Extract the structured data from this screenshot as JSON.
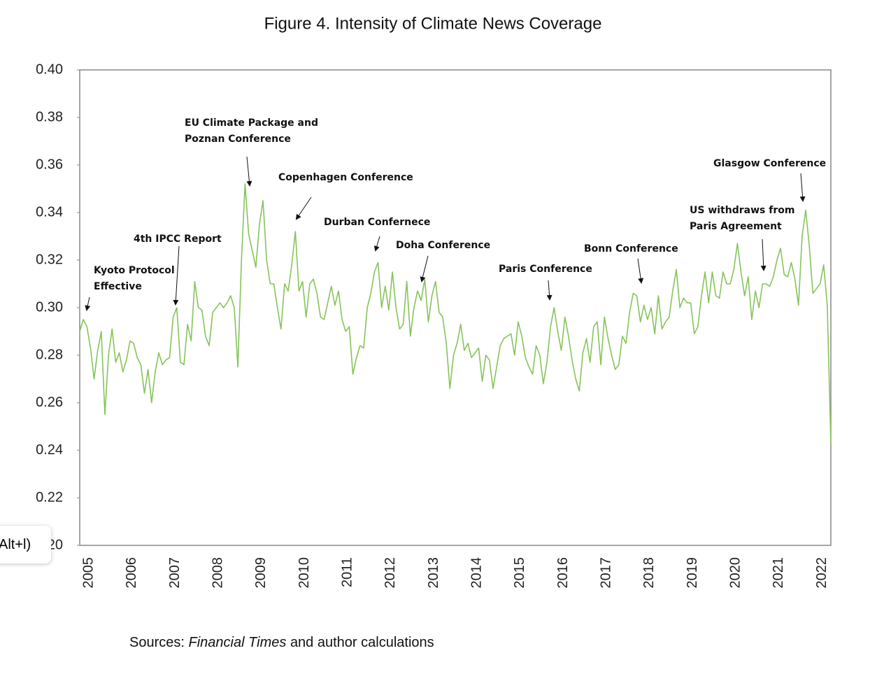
{
  "chart_data": {
    "type": "line",
    "title": "Figure 4. Intensity of Climate News Coverage",
    "categories": [
      null,
      null,
      "2005",
      null,
      null,
      null,
      null,
      null,
      null,
      null,
      null,
      null,
      null,
      null,
      "2006",
      null,
      null,
      null,
      null,
      null,
      null,
      null,
      null,
      null,
      null,
      null,
      "2007",
      null,
      null,
      null,
      null,
      null,
      null,
      null,
      null,
      null,
      null,
      null,
      "2008",
      null,
      null,
      null,
      null,
      null,
      null,
      null,
      null,
      null,
      null,
      null,
      "2009",
      null,
      null,
      null,
      null,
      null,
      null,
      null,
      null,
      null,
      null,
      null,
      "2010",
      null,
      null,
      null,
      null,
      null,
      null,
      null,
      null,
      null,
      null,
      null,
      "2011",
      null,
      null,
      null,
      null,
      null,
      null,
      null,
      null,
      null,
      null,
      null,
      "2012",
      null,
      null,
      null,
      null,
      null,
      null,
      null,
      null,
      null,
      null,
      null,
      "2013",
      null,
      null,
      null,
      null,
      null,
      null,
      null,
      null,
      null,
      null,
      null,
      "2014",
      null,
      null,
      null,
      null,
      null,
      null,
      null,
      null,
      null,
      null,
      null,
      "2015",
      null,
      null,
      null,
      null,
      null,
      null,
      null,
      null,
      null,
      null,
      null,
      "2016",
      null,
      null,
      null,
      null,
      null,
      null,
      null,
      null,
      null,
      null,
      null,
      "2017",
      null,
      null,
      null,
      null,
      null,
      null,
      null,
      null,
      null,
      null,
      null,
      "2018",
      null,
      null,
      null,
      null,
      null,
      null,
      null,
      null,
      null,
      null,
      null,
      "2019",
      null,
      null,
      null,
      null,
      null,
      null,
      null,
      null,
      null,
      null,
      null,
      "2020",
      null,
      null,
      null,
      null,
      null,
      null,
      null,
      null,
      null,
      null,
      null,
      "2021",
      null,
      null,
      null,
      null,
      null,
      null,
      null,
      null,
      null,
      null,
      null,
      "2022",
      null,
      null,
      null
    ],
    "values": [
      0.29,
      0.295,
      0.292,
      0.283,
      0.27,
      0.282,
      0.29,
      0.255,
      0.28,
      0.291,
      0.277,
      0.281,
      0.273,
      0.278,
      0.286,
      0.285,
      0.279,
      0.276,
      0.264,
      0.274,
      0.26,
      0.273,
      0.281,
      0.276,
      0.278,
      0.279,
      0.296,
      0.3,
      0.277,
      0.276,
      0.293,
      0.286,
      0.311,
      0.3,
      0.299,
      0.288,
      0.284,
      0.298,
      0.3,
      0.302,
      0.3,
      0.302,
      0.305,
      0.3,
      0.275,
      0.32,
      0.352,
      0.331,
      0.324,
      0.317,
      0.335,
      0.345,
      0.32,
      0.31,
      0.31,
      0.3,
      0.291,
      0.31,
      0.307,
      0.318,
      0.332,
      0.307,
      0.311,
      0.296,
      0.31,
      0.312,
      0.306,
      0.296,
      0.295,
      0.302,
      0.309,
      0.301,
      0.307,
      0.295,
      0.29,
      0.292,
      0.272,
      0.279,
      0.284,
      0.283,
      0.3,
      0.306,
      0.315,
      0.319,
      0.3,
      0.309,
      0.299,
      0.315,
      0.3,
      0.291,
      0.293,
      0.311,
      0.288,
      0.3,
      0.307,
      0.303,
      0.312,
      0.294,
      0.305,
      0.311,
      0.298,
      0.296,
      0.285,
      0.266,
      0.28,
      0.285,
      0.293,
      0.282,
      0.285,
      0.279,
      0.281,
      0.283,
      0.269,
      0.28,
      0.278,
      0.266,
      0.275,
      0.284,
      0.287,
      0.288,
      0.289,
      0.28,
      0.294,
      0.288,
      0.279,
      0.275,
      0.272,
      0.284,
      0.28,
      0.268,
      0.277,
      0.292,
      0.3,
      0.29,
      0.282,
      0.296,
      0.288,
      0.278,
      0.27,
      0.265,
      0.281,
      0.287,
      0.277,
      0.292,
      0.294,
      0.276,
      0.296,
      0.287,
      0.28,
      0.274,
      0.276,
      0.288,
      0.285,
      0.298,
      0.306,
      0.305,
      0.294,
      0.301,
      0.295,
      0.3,
      0.289,
      0.305,
      0.291,
      0.294,
      0.296,
      0.307,
      0.316,
      0.3,
      0.304,
      0.302,
      0.302,
      0.289,
      0.292,
      0.305,
      0.315,
      0.302,
      0.315,
      0.305,
      0.304,
      0.315,
      0.31,
      0.31,
      0.316,
      0.327,
      0.315,
      0.305,
      0.313,
      0.295,
      0.307,
      0.3,
      0.31,
      0.31,
      0.309,
      0.313,
      0.32,
      0.325,
      0.314,
      0.313,
      0.319,
      0.312,
      0.301,
      0.33,
      0.341,
      0.326,
      0.306,
      0.308,
      0.31,
      0.318,
      0.301,
      0.243
    ],
    "color": "#86c45a",
    "ylim": [
      0.2,
      0.4
    ],
    "yticks": [
      {
        "value": 0.2,
        "label": "0.20"
      },
      0.22,
      0.24,
      0.26,
      0.28,
      {
        "value": 0.3,
        "label": "0.30"
      },
      0.32,
      0.34,
      0.36,
      0.38,
      {
        "value": 0.4,
        "label": "0.40"
      }
    ],
    "grid": false,
    "annotations": [
      [
        "Kyoto Protocol",
        "Effective"
      ],
      [
        "4th IPCC Report"
      ],
      [
        "EU Climate Package and",
        "Poznan Conference"
      ],
      [
        "Copenhagen Conference"
      ],
      [
        "Durban Confernece"
      ],
      [
        "Doha Conference"
      ],
      [
        "Paris Conference"
      ],
      [
        "Bonn Conference"
      ],
      [
        "US withdraws from",
        "Paris Agreement"
      ],
      [
        "Glasgow Conference"
      ]
    ],
    "source_prefix": "Sources:",
    "source_italic": "Financial Times",
    "source_suffix": "and author calculations"
  },
  "tooltip": "Alt+l)"
}
